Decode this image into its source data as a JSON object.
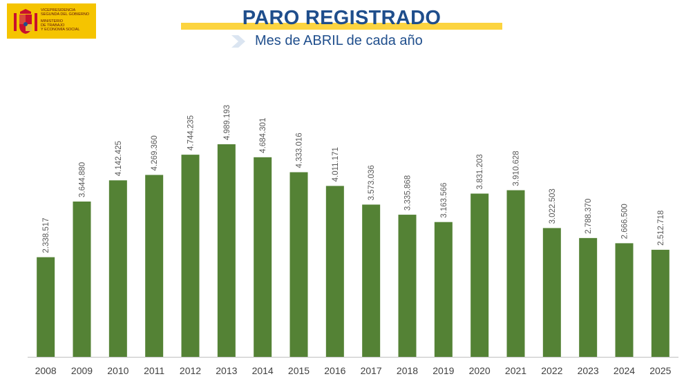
{
  "header": {
    "logo_lines_1": [
      "Vicepresidencia",
      "Segunda del Gobierno"
    ],
    "logo_lines_2": [
      "Ministerio",
      "de Trabajo",
      "y Economía Social"
    ],
    "title": "PARO REGISTRADO",
    "subtitle": "Mes de ABRIL de cada año"
  },
  "colors": {
    "bar": "#548235",
    "title": "#1f4e8c",
    "band": "#fcd440",
    "logo_bg": "#f5c400",
    "value_label": "#595959"
  },
  "chart_data": {
    "type": "bar",
    "title": "PARO REGISTRADO",
    "subtitle": "Mes de ABRIL de cada año",
    "categories": [
      "2008",
      "2009",
      "2010",
      "2011",
      "2012",
      "2013",
      "2014",
      "2015",
      "2016",
      "2017",
      "2018",
      "2019",
      "2020",
      "2021",
      "2022",
      "2023",
      "2024",
      "2025"
    ],
    "values": [
      2338517,
      3644880,
      4142425,
      4269360,
      4744235,
      4989193,
      4684301,
      4333016,
      4011171,
      3573036,
      3335868,
      3163566,
      3831203,
      3910628,
      3022503,
      2788370,
      2666500,
      2512718
    ],
    "data_labels": [
      "2.338.517",
      "3.644.880",
      "4.142.425",
      "4.269.360",
      "4.744.235",
      "4.989.193",
      "4.684.301",
      "4.333.016",
      "4.011.171",
      "3.573.036",
      "3.335.868",
      "3.163.566",
      "3.831.203",
      "3.910.628",
      "3.022.503",
      "2.788.370",
      "2.666.500",
      "2.512.718"
    ],
    "xlabel": "",
    "ylabel": "",
    "ylim": [
      0,
      5000000
    ],
    "grid": false,
    "legend": "none"
  }
}
